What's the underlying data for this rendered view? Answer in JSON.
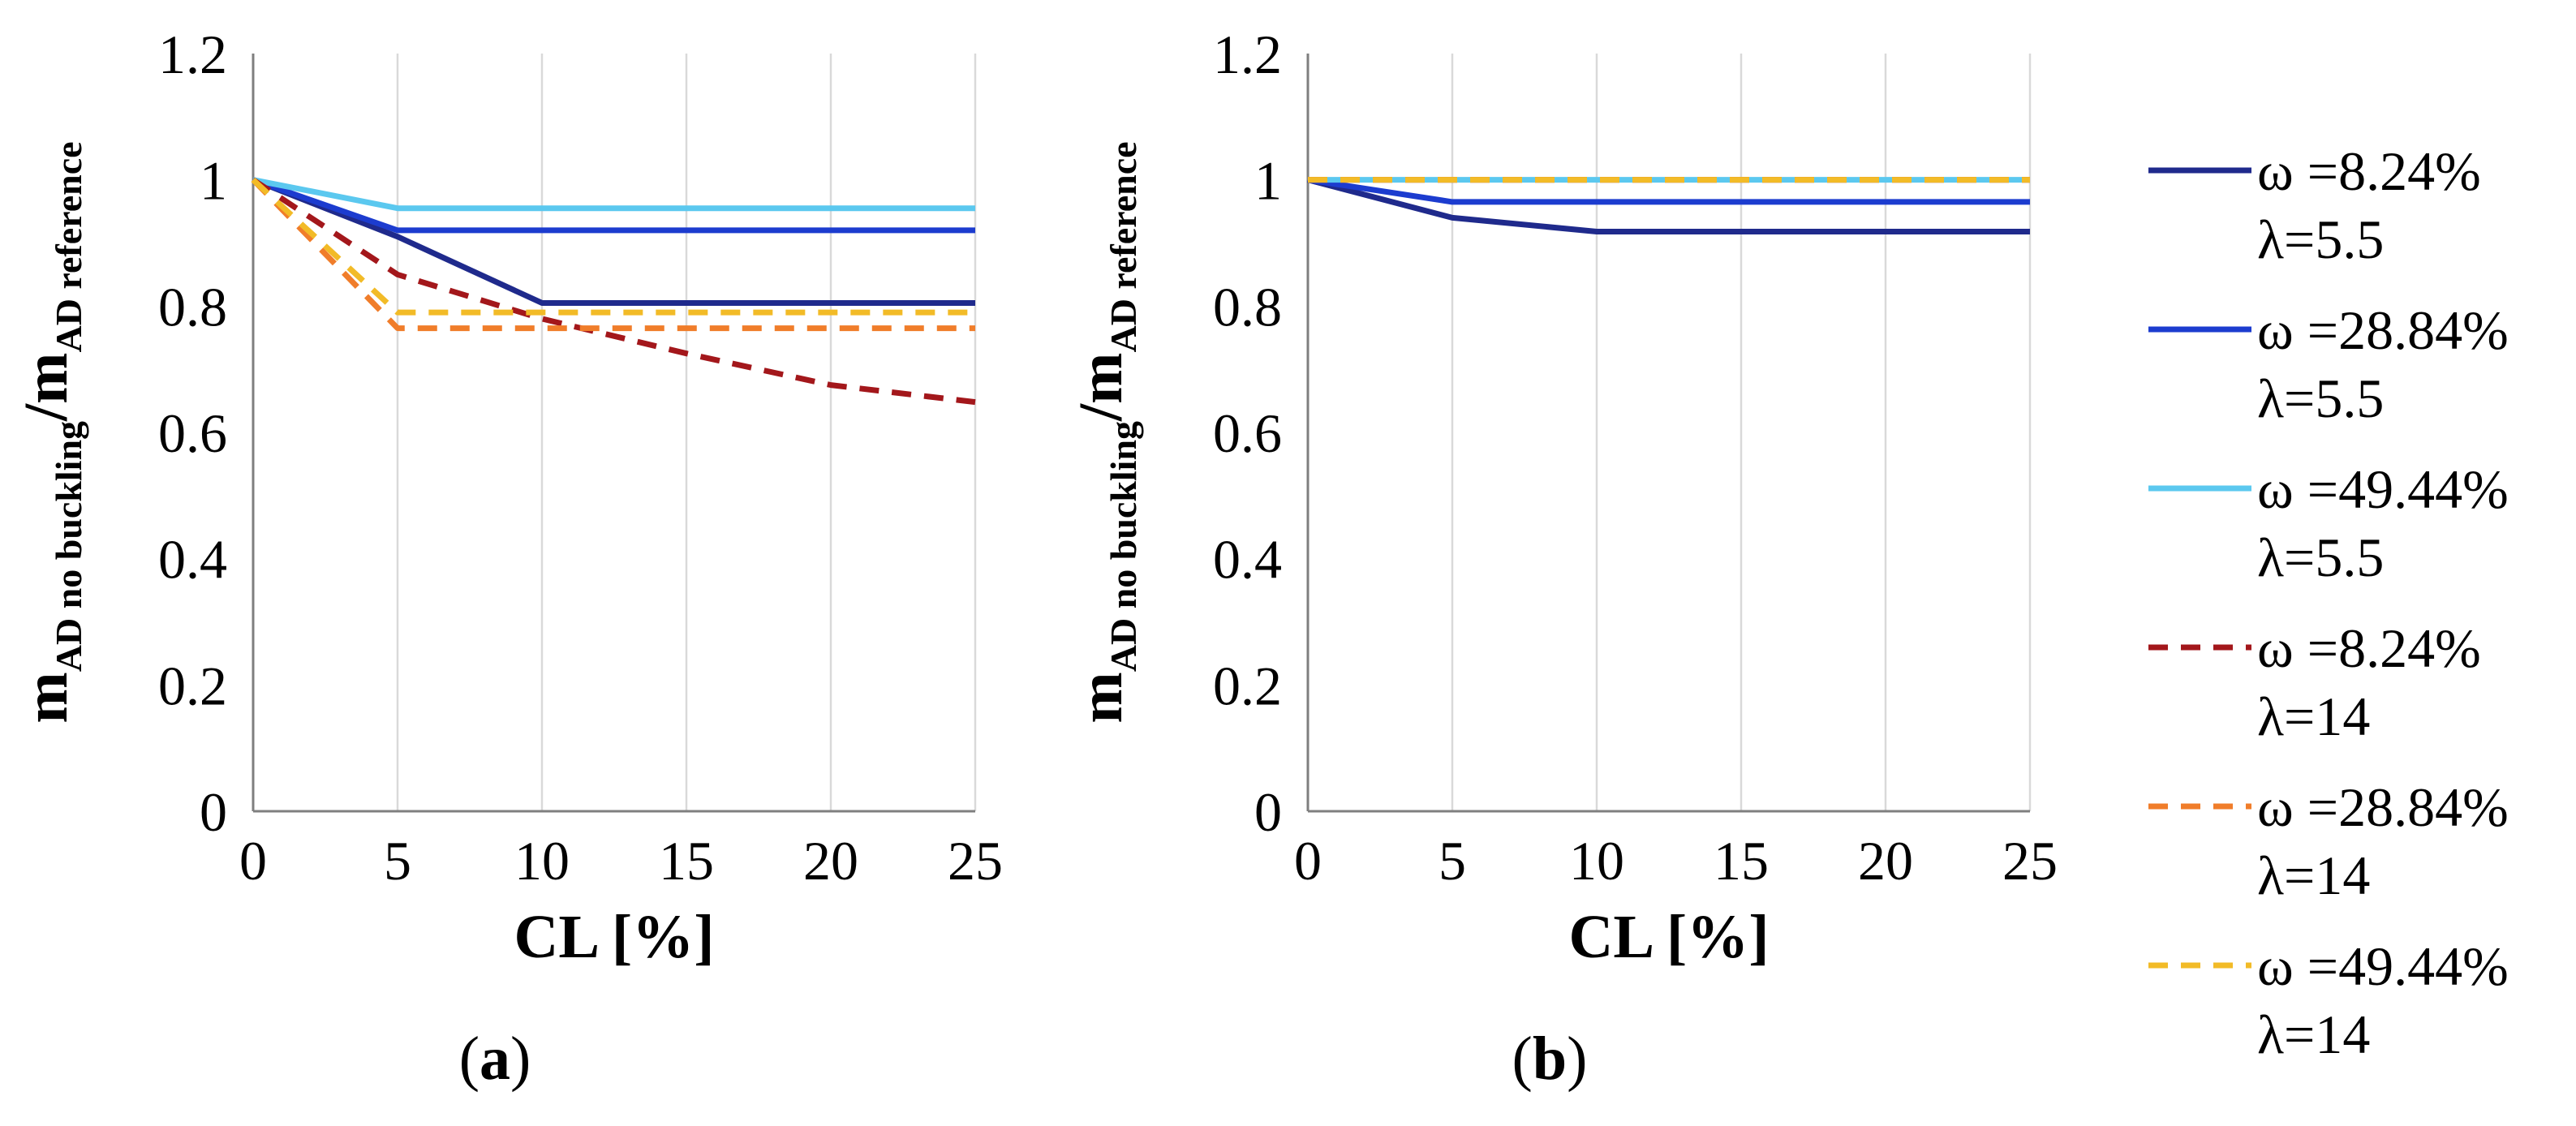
{
  "chart_data": [
    {
      "type": "line",
      "panel": "(a)",
      "panel_paren_open": "(",
      "panel_letter": "a",
      "panel_paren_close": ")",
      "xlabel": "CL [%]",
      "ylabel_main": "m",
      "ylabel_sub1": "AD no buckling",
      "ylabel_slash": "/m",
      "ylabel_sub2": "AD reference",
      "x": [
        0,
        5,
        10,
        15,
        20,
        25
      ],
      "xlim": [
        0,
        25
      ],
      "ylim": [
        0,
        1.2
      ],
      "xticks": [
        "0",
        "5",
        "10",
        "15",
        "20",
        "25"
      ],
      "yticks": [
        "0",
        "0.2",
        "0.4",
        "0.6",
        "0.8",
        "1",
        "1.2"
      ],
      "grid": "vertical",
      "series": [
        {
          "name": "ω =8.24% λ=5.5",
          "color": "#1f2a8c",
          "dash": false,
          "x": [
            0,
            5,
            10,
            25
          ],
          "values": [
            1,
            0.91,
            0.805,
            0.805
          ]
        },
        {
          "name": "ω =28.84% λ=5.5",
          "color": "#1c3ccf",
          "dash": false,
          "x": [
            0,
            5,
            25
          ],
          "values": [
            1,
            0.92,
            0.92
          ]
        },
        {
          "name": "ω =49.44% λ=5.5",
          "color": "#5bc8ef",
          "dash": false,
          "x": [
            0,
            5,
            25
          ],
          "values": [
            1,
            0.955,
            0.955
          ]
        },
        {
          "name": "ω =8.24% λ=14",
          "color": "#a3171b",
          "dash": true,
          "x": [
            0,
            5,
            10,
            15,
            20,
            25
          ],
          "values": [
            1,
            0.85,
            0.78,
            0.725,
            0.675,
            0.648
          ]
        },
        {
          "name": "ω =28.84% λ=14",
          "color": "#f07d2a",
          "dash": true,
          "x": [
            0,
            5,
            25
          ],
          "values": [
            1,
            0.765,
            0.765
          ]
        },
        {
          "name": "ω =49.44% λ=14",
          "color": "#f2bb27",
          "dash": true,
          "x": [
            0,
            5,
            25
          ],
          "values": [
            1,
            0.79,
            0.79
          ]
        }
      ]
    },
    {
      "type": "line",
      "panel": "(b)",
      "panel_paren_open": "(",
      "panel_letter": "b",
      "panel_paren_close": ")",
      "xlabel": "CL [%]",
      "ylabel_main": "m",
      "ylabel_sub1": "AD no buckling",
      "ylabel_slash": "/m",
      "ylabel_sub2": "AD reference",
      "x": [
        0,
        5,
        10,
        15,
        20,
        25
      ],
      "xlim": [
        0,
        25
      ],
      "ylim": [
        0,
        1.2
      ],
      "xticks": [
        "0",
        "5",
        "10",
        "15",
        "20",
        "25"
      ],
      "yticks": [
        "0",
        "0.2",
        "0.4",
        "0.6",
        "0.8",
        "1",
        "1.2"
      ],
      "grid": "vertical",
      "series": [
        {
          "name": "ω =8.24% λ=5.5",
          "color": "#1f2a8c",
          "dash": false,
          "x": [
            0,
            5,
            10,
            25
          ],
          "values": [
            1,
            0.94,
            0.918,
            0.918
          ]
        },
        {
          "name": "ω =28.84% λ=5.5",
          "color": "#1c3ccf",
          "dash": false,
          "x": [
            0,
            5,
            25
          ],
          "values": [
            1,
            0.965,
            0.965
          ]
        },
        {
          "name": "ω =49.44% λ=5.5",
          "color": "#5bc8ef",
          "dash": false,
          "x": [
            0,
            25
          ],
          "values": [
            1,
            1
          ]
        },
        {
          "name": "ω =8.24% λ=14",
          "color": "#a3171b",
          "dash": true,
          "x": [
            0,
            25
          ],
          "values": [
            1,
            1
          ]
        },
        {
          "name": "ω =28.84% λ=14",
          "color": "#f07d2a",
          "dash": true,
          "x": [
            0,
            25
          ],
          "values": [
            1,
            1
          ]
        },
        {
          "name": "ω =49.44% λ=14",
          "color": "#f2bb27",
          "dash": true,
          "x": [
            0,
            25
          ],
          "values": [
            1,
            1
          ]
        }
      ]
    }
  ],
  "legend": {
    "placement": "right",
    "entries": [
      {
        "line1": "ω =8.24%",
        "line2": "λ=5.5",
        "color": "#1f2a8c",
        "dash": false
      },
      {
        "line1": "ω =28.84%",
        "line2": "λ=5.5",
        "color": "#1c3ccf",
        "dash": false
      },
      {
        "line1": "ω =49.44%",
        "line2": "λ=5.5",
        "color": "#5bc8ef",
        "dash": false
      },
      {
        "line1": "ω =8.24%",
        "line2": "λ=14",
        "color": "#a3171b",
        "dash": true
      },
      {
        "line1": "ω =28.84%",
        "line2": "λ=14",
        "color": "#f07d2a",
        "dash": true
      },
      {
        "line1": "ω =49.44%",
        "line2": "λ=14",
        "color": "#f2bb27",
        "dash": true
      }
    ]
  }
}
